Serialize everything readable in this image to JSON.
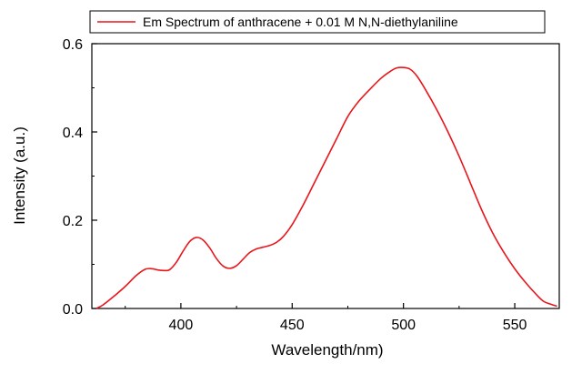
{
  "chart_data": {
    "type": "line",
    "title": "",
    "xlabel": "Wavelength/nm)",
    "ylabel": "Intensity (a.u.)",
    "xlim": [
      360,
      570
    ],
    "ylim": [
      0.0,
      0.6
    ],
    "x_ticks": [
      400,
      450,
      500,
      550
    ],
    "x_tick_labels": [
      "400",
      "450",
      "500",
      "550"
    ],
    "y_ticks": [
      0.0,
      0.2,
      0.4,
      0.6
    ],
    "y_tick_labels": [
      "0.0",
      "0.2",
      "0.4",
      "0.6"
    ],
    "grid": false,
    "legend_position": "top",
    "series": [
      {
        "name": "Em Spectrum of anthracene + 0.01 M N,N-diethylaniline",
        "color": "#e8161c",
        "x": [
          362,
          365,
          370,
          375,
          380,
          384,
          387,
          390,
          393,
          395,
          398,
          401,
          404,
          407,
          410,
          413,
          416,
          419,
          422,
          425,
          428,
          431,
          434,
          437,
          440,
          443,
          446,
          450,
          455,
          460,
          465,
          470,
          475,
          480,
          485,
          490,
          494,
          497,
          500,
          503,
          506,
          510,
          515,
          520,
          525,
          530,
          535,
          540,
          545,
          550,
          555,
          560,
          563,
          566,
          569
        ],
        "y": [
          0.0,
          0.008,
          0.028,
          0.05,
          0.075,
          0.089,
          0.09,
          0.087,
          0.086,
          0.088,
          0.105,
          0.13,
          0.152,
          0.161,
          0.155,
          0.137,
          0.113,
          0.096,
          0.091,
          0.097,
          0.112,
          0.127,
          0.135,
          0.139,
          0.143,
          0.15,
          0.163,
          0.19,
          0.235,
          0.285,
          0.335,
          0.385,
          0.435,
          0.47,
          0.497,
          0.522,
          0.537,
          0.545,
          0.546,
          0.542,
          0.527,
          0.495,
          0.45,
          0.4,
          0.345,
          0.285,
          0.225,
          0.172,
          0.128,
          0.09,
          0.058,
          0.03,
          0.016,
          0.01,
          0.005
        ]
      }
    ]
  }
}
